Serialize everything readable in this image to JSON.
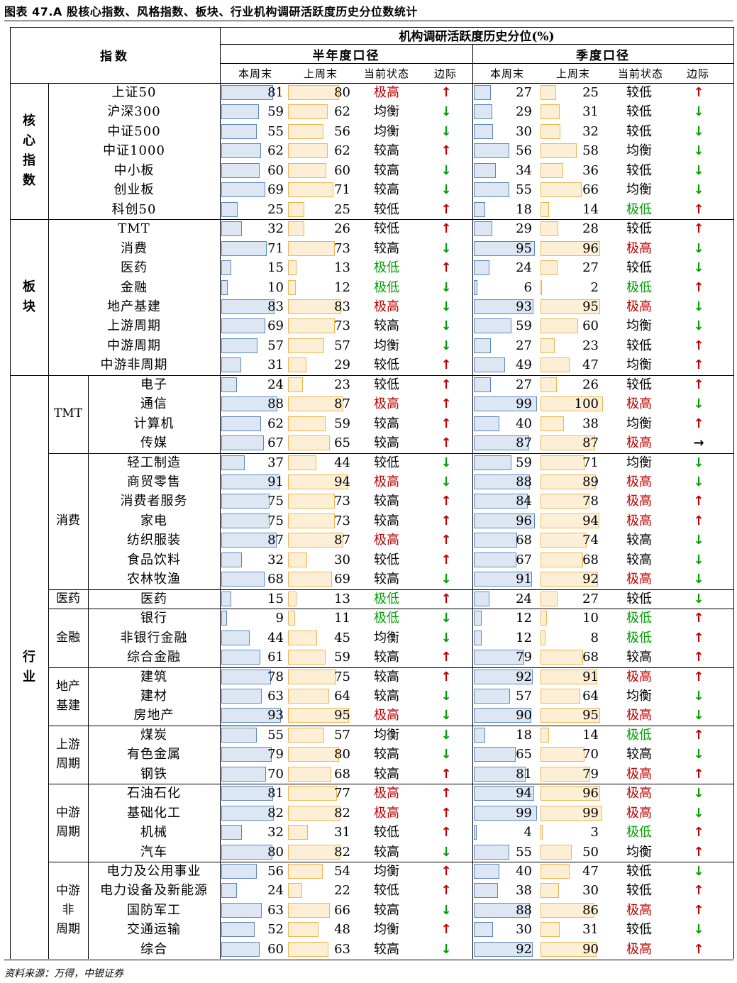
{
  "title": "图表 47.A 股核心指数、风格指数、板块、行业机构调研活跃度历史分位数统计",
  "source": "资料来源：万得，中银证券",
  "header": {
    "index_label": "指数",
    "group_label": "机构调研活跃度历史分位(%)",
    "half_year": "半年度口径",
    "quarter": "季度口径",
    "cols": [
      "本周末",
      "上周末",
      "当前状态",
      "边际"
    ]
  },
  "colors": {
    "up": "#c00000",
    "down": "#00a000",
    "flat": "#000000",
    "high": "#c00000",
    "low": "#00a000"
  },
  "categories": [
    {
      "name": "核心指数",
      "start": 0,
      "end": 7
    },
    {
      "name": "板块",
      "start": 7,
      "end": 15
    },
    {
      "name": "行业",
      "start": 15,
      "end": 45
    }
  ],
  "subcategories": [
    {
      "name": "TMT",
      "start": 15,
      "end": 19
    },
    {
      "name": "消费",
      "start": 19,
      "end": 26
    },
    {
      "name": "医药",
      "start": 26,
      "end": 27
    },
    {
      "name": "金融",
      "start": 27,
      "end": 30
    },
    {
      "name": "地产基建",
      "start": 30,
      "end": 33
    },
    {
      "name": "上游周期",
      "start": 33,
      "end": 36
    },
    {
      "name": "中游周期",
      "start": 36,
      "end": 40
    },
    {
      "name": "中游非周期",
      "start": 40,
      "end": 45
    }
  ],
  "rows": [
    {
      "name": "上证50",
      "h": [
        81,
        80,
        "极高",
        "up"
      ],
      "q": [
        27,
        25,
        "较低",
        "up"
      ]
    },
    {
      "name": "沪深300",
      "h": [
        59,
        62,
        "均衡",
        "down"
      ],
      "q": [
        29,
        31,
        "较低",
        "down"
      ]
    },
    {
      "name": "中证500",
      "h": [
        55,
        56,
        "均衡",
        "down"
      ],
      "q": [
        30,
        32,
        "较低",
        "down"
      ]
    },
    {
      "name": "中证1000",
      "h": [
        62,
        62,
        "较高",
        "up"
      ],
      "q": [
        56,
        58,
        "均衡",
        "down"
      ]
    },
    {
      "name": "中小板",
      "h": [
        60,
        60,
        "较高",
        "down"
      ],
      "q": [
        34,
        36,
        "较低",
        "down"
      ]
    },
    {
      "name": "创业板",
      "h": [
        69,
        71,
        "较高",
        "down"
      ],
      "q": [
        55,
        66,
        "均衡",
        "down"
      ]
    },
    {
      "name": "科创50",
      "h": [
        25,
        25,
        "较低",
        "up"
      ],
      "q": [
        18,
        14,
        "极低",
        "up"
      ]
    },
    {
      "name": "TMT",
      "h": [
        32,
        26,
        "较低",
        "up"
      ],
      "q": [
        29,
        28,
        "较低",
        "up"
      ]
    },
    {
      "name": "消费",
      "h": [
        71,
        73,
        "较高",
        "down"
      ],
      "q": [
        95,
        96,
        "极高",
        "down"
      ]
    },
    {
      "name": "医药",
      "h": [
        15,
        13,
        "极低",
        "up"
      ],
      "q": [
        24,
        27,
        "较低",
        "down"
      ]
    },
    {
      "name": "金融",
      "h": [
        10,
        12,
        "极低",
        "down"
      ],
      "q": [
        6,
        2,
        "极低",
        "up"
      ]
    },
    {
      "name": "地产基建",
      "h": [
        83,
        83,
        "极高",
        "down"
      ],
      "q": [
        93,
        95,
        "极高",
        "down"
      ]
    },
    {
      "name": "上游周期",
      "h": [
        69,
        73,
        "较高",
        "down"
      ],
      "q": [
        59,
        60,
        "均衡",
        "down"
      ]
    },
    {
      "name": "中游周期",
      "h": [
        57,
        57,
        "均衡",
        "down"
      ],
      "q": [
        27,
        23,
        "较低",
        "up"
      ]
    },
    {
      "name": "中游非周期",
      "h": [
        31,
        29,
        "较低",
        "up"
      ],
      "q": [
        49,
        47,
        "均衡",
        "up"
      ]
    },
    {
      "name": "电子",
      "h": [
        24,
        23,
        "较低",
        "up"
      ],
      "q": [
        27,
        26,
        "较低",
        "up"
      ]
    },
    {
      "name": "通信",
      "h": [
        88,
        87,
        "极高",
        "up"
      ],
      "q": [
        99,
        100,
        "极高",
        "down"
      ]
    },
    {
      "name": "计算机",
      "h": [
        62,
        59,
        "较高",
        "up"
      ],
      "q": [
        40,
        38,
        "均衡",
        "up"
      ]
    },
    {
      "name": "传媒",
      "h": [
        67,
        65,
        "较高",
        "up"
      ],
      "q": [
        87,
        87,
        "极高",
        "flat"
      ]
    },
    {
      "name": "轻工制造",
      "h": [
        37,
        44,
        "较低",
        "down"
      ],
      "q": [
        59,
        71,
        "均衡",
        "down"
      ]
    },
    {
      "name": "商贸零售",
      "h": [
        91,
        94,
        "极高",
        "down"
      ],
      "q": [
        88,
        89,
        "极高",
        "down"
      ]
    },
    {
      "name": "消费者服务",
      "h": [
        75,
        73,
        "较高",
        "up"
      ],
      "q": [
        84,
        78,
        "极高",
        "up"
      ]
    },
    {
      "name": "家电",
      "h": [
        75,
        73,
        "较高",
        "up"
      ],
      "q": [
        96,
        94,
        "极高",
        "up"
      ]
    },
    {
      "name": "纺织服装",
      "h": [
        87,
        87,
        "极高",
        "up"
      ],
      "q": [
        68,
        74,
        "较高",
        "down"
      ]
    },
    {
      "name": "食品饮料",
      "h": [
        32,
        30,
        "较低",
        "up"
      ],
      "q": [
        67,
        68,
        "较高",
        "down"
      ]
    },
    {
      "name": "农林牧渔",
      "h": [
        68,
        69,
        "较高",
        "down"
      ],
      "q": [
        91,
        92,
        "极高",
        "down"
      ]
    },
    {
      "name": "医药",
      "h": [
        15,
        13,
        "极低",
        "up"
      ],
      "q": [
        24,
        27,
        "较低",
        "down"
      ]
    },
    {
      "name": "银行",
      "h": [
        9,
        11,
        "极低",
        "down"
      ],
      "q": [
        12,
        10,
        "极低",
        "up"
      ]
    },
    {
      "name": "非银行金融",
      "h": [
        44,
        45,
        "均衡",
        "down"
      ],
      "q": [
        12,
        8,
        "极低",
        "up"
      ]
    },
    {
      "name": "综合金融",
      "h": [
        61,
        59,
        "较高",
        "up"
      ],
      "q": [
        79,
        68,
        "较高",
        "up"
      ]
    },
    {
      "name": "建筑",
      "h": [
        78,
        75,
        "较高",
        "up"
      ],
      "q": [
        92,
        91,
        "极高",
        "up"
      ]
    },
    {
      "name": "建材",
      "h": [
        63,
        64,
        "较高",
        "down"
      ],
      "q": [
        57,
        64,
        "均衡",
        "down"
      ]
    },
    {
      "name": "房地产",
      "h": [
        93,
        95,
        "极高",
        "down"
      ],
      "q": [
        90,
        95,
        "极高",
        "down"
      ]
    },
    {
      "name": "煤炭",
      "h": [
        55,
        57,
        "均衡",
        "down"
      ],
      "q": [
        18,
        14,
        "极低",
        "up"
      ]
    },
    {
      "name": "有色金属",
      "h": [
        79,
        80,
        "较高",
        "down"
      ],
      "q": [
        65,
        70,
        "较高",
        "down"
      ]
    },
    {
      "name": "钢铁",
      "h": [
        70,
        68,
        "较高",
        "up"
      ],
      "q": [
        81,
        79,
        "极高",
        "up"
      ]
    },
    {
      "name": "石油石化",
      "h": [
        81,
        77,
        "极高",
        "up"
      ],
      "q": [
        94,
        96,
        "极高",
        "down"
      ]
    },
    {
      "name": "基础化工",
      "h": [
        82,
        82,
        "极高",
        "up"
      ],
      "q": [
        99,
        99,
        "极高",
        "down"
      ]
    },
    {
      "name": "机械",
      "h": [
        32,
        31,
        "较低",
        "up"
      ],
      "q": [
        4,
        3,
        "极低",
        "up"
      ]
    },
    {
      "name": "汽车",
      "h": [
        80,
        82,
        "较高",
        "down"
      ],
      "q": [
        55,
        50,
        "均衡",
        "up"
      ]
    },
    {
      "name": "电力及公用事业",
      "h": [
        56,
        54,
        "均衡",
        "up"
      ],
      "q": [
        40,
        47,
        "较低",
        "down"
      ]
    },
    {
      "name": "电力设备及新能源",
      "h": [
        24,
        22,
        "较低",
        "up"
      ],
      "q": [
        38,
        30,
        "较低",
        "up"
      ]
    },
    {
      "name": "国防军工",
      "h": [
        63,
        66,
        "较高",
        "down"
      ],
      "q": [
        88,
        86,
        "极高",
        "up"
      ]
    },
    {
      "name": "交通运输",
      "h": [
        52,
        48,
        "均衡",
        "up"
      ],
      "q": [
        30,
        31,
        "较低",
        "down"
      ]
    },
    {
      "name": "综合",
      "h": [
        60,
        63,
        "较高",
        "down"
      ],
      "q": [
        92,
        90,
        "极高",
        "up"
      ]
    }
  ]
}
